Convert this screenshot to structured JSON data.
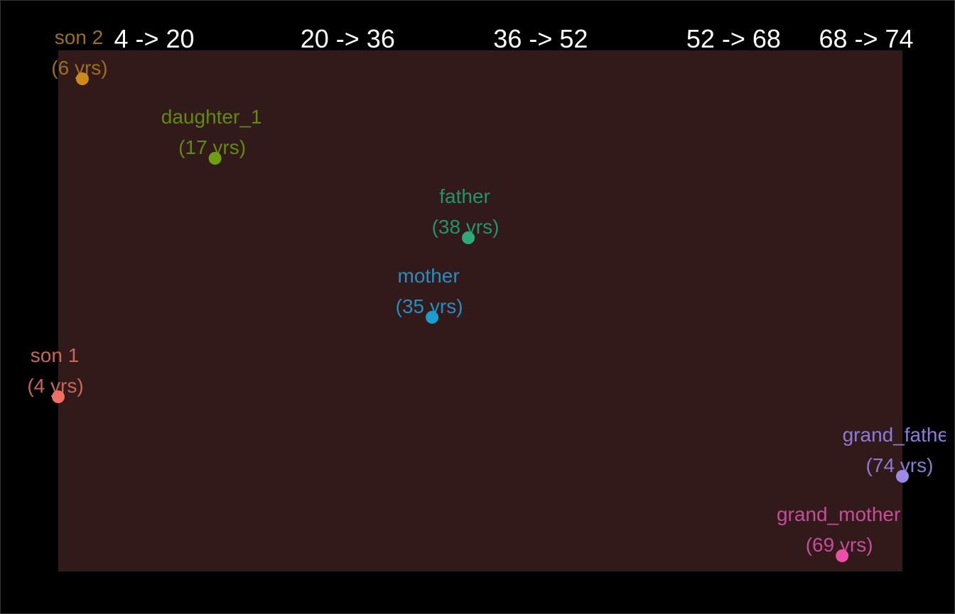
{
  "chart_data": {
    "type": "scatter",
    "title": "",
    "xlabel": "",
    "ylabel": "",
    "xlim": [
      4,
      74
    ],
    "background_color": "#32191a",
    "page_background": "#000000",
    "age_bands": [
      {
        "label": "4 -> 20",
        "from": 4,
        "to": 20
      },
      {
        "label": "20 -> 36",
        "from": 20,
        "to": 36
      },
      {
        "label": "36 -> 52",
        "from": 36,
        "to": 52
      },
      {
        "label": "52 -> 68",
        "from": 52,
        "to": 68
      },
      {
        "label": "68 -> 74",
        "from": 68,
        "to": 74
      }
    ],
    "points": [
      {
        "name": "son 2",
        "age": 6,
        "age_label": "(6 yrs)",
        "dot_color": "#cc8a1b",
        "text_color": "#9c6e1e"
      },
      {
        "name": "daughter_1",
        "age": 17,
        "age_label": "(17 yrs)",
        "dot_color": "#6f9d18",
        "text_color": "#5f8a14"
      },
      {
        "name": "father",
        "age": 38,
        "age_label": "(38 yrs)",
        "dot_color": "#2ea97a",
        "text_color": "#229468"
      },
      {
        "name": "mother",
        "age": 35,
        "age_label": "(35 yrs)",
        "dot_color": "#1e9dcc",
        "text_color": "#2a8bc0"
      },
      {
        "name": "son 1",
        "age": 4,
        "age_label": "(4 yrs)",
        "dot_color": "#f06e62",
        "text_color": "#c9665a"
      },
      {
        "name": "grand_father",
        "age": 74,
        "age_label": "(74 yrs)",
        "dot_color": "#9c8ae6",
        "text_color": "#8e7bd6"
      },
      {
        "name": "grand_mother",
        "age": 69,
        "age_label": "(69 yrs)",
        "dot_color": "#ee4fa6",
        "text_color": "#c74d9c"
      }
    ]
  }
}
